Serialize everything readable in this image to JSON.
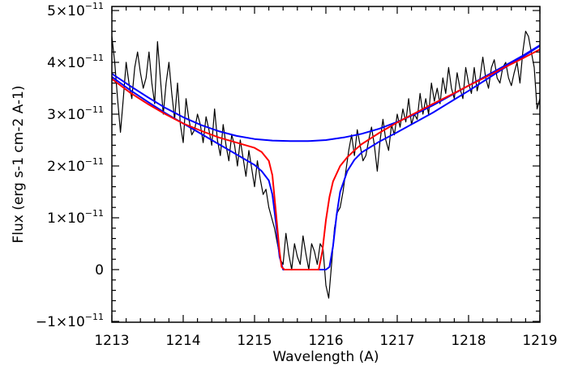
{
  "chart_data": {
    "type": "line",
    "title": "",
    "xlabel": "Wavelength (A)",
    "ylabel": "Flux (erg s-1 cm-2 A-1)",
    "xlim": [
      1213,
      1219
    ],
    "ylim": [
      -1.2e-11,
      5e-11
    ],
    "x_ticks": [
      {
        "value": 1213,
        "label": "1213"
      },
      {
        "value": 1214,
        "label": "1214"
      },
      {
        "value": 1215,
        "label": "1215"
      },
      {
        "value": 1216,
        "label": "1216"
      },
      {
        "value": 1217,
        "label": "1217"
      },
      {
        "value": 1218,
        "label": "1218"
      },
      {
        "value": 1219,
        "label": "1219"
      }
    ],
    "y_ticks": [
      {
        "value": -1e-11,
        "mantissa": "−1×10",
        "exponent": "−11"
      },
      {
        "value": 0,
        "mantissa": "0",
        "exponent": ""
      },
      {
        "value": 1e-11,
        "mantissa": "1×10",
        "exponent": "−11"
      },
      {
        "value": 2e-11,
        "mantissa": "2×10",
        "exponent": "−11"
      },
      {
        "value": 3e-11,
        "mantissa": "3×10",
        "exponent": "−11"
      },
      {
        "value": 4e-11,
        "mantissa": "4×10",
        "exponent": "−11"
      },
      {
        "value": 5e-11,
        "mantissa": "5×10",
        "exponent": "−11"
      }
    ],
    "series": [
      {
        "color": "#000000",
        "x": [
          1213.0,
          1213.04,
          1213.08,
          1213.12,
          1213.16,
          1213.2,
          1213.24,
          1213.28,
          1213.32,
          1213.36,
          1213.4,
          1213.44,
          1213.48,
          1213.52,
          1213.56,
          1213.6,
          1213.64,
          1213.68,
          1213.72,
          1213.76,
          1213.8,
          1213.84,
          1213.88,
          1213.92,
          1213.96,
          1214.0,
          1214.04,
          1214.08,
          1214.12,
          1214.16,
          1214.2,
          1214.24,
          1214.28,
          1214.32,
          1214.36,
          1214.4,
          1214.44,
          1214.48,
          1214.52,
          1214.56,
          1214.6,
          1214.64,
          1214.68,
          1214.72,
          1214.76,
          1214.8,
          1214.84,
          1214.88,
          1214.92,
          1214.96,
          1215.0,
          1215.04,
          1215.08,
          1215.12,
          1215.16,
          1215.2,
          1215.24,
          1215.28,
          1215.32,
          1215.36,
          1215.4,
          1215.44,
          1215.48,
          1215.52,
          1215.56,
          1215.6,
          1215.64,
          1215.68,
          1215.72,
          1215.76,
          1215.8,
          1215.84,
          1215.88,
          1215.92,
          1215.96,
          1216.0,
          1216.04,
          1216.08,
          1216.12,
          1216.16,
          1216.2,
          1216.24,
          1216.28,
          1216.32,
          1216.36,
          1216.4,
          1216.44,
          1216.48,
          1216.52,
          1216.56,
          1216.6,
          1216.64,
          1216.68,
          1216.72,
          1216.76,
          1216.8,
          1216.84,
          1216.88,
          1216.92,
          1216.96,
          1217.0,
          1217.04,
          1217.08,
          1217.12,
          1217.16,
          1217.2,
          1217.24,
          1217.28,
          1217.32,
          1217.36,
          1217.4,
          1217.44,
          1217.48,
          1217.52,
          1217.56,
          1217.6,
          1217.64,
          1217.68,
          1217.72,
          1217.76,
          1217.8,
          1217.84,
          1217.88,
          1217.92,
          1217.96,
          1218.0,
          1218.04,
          1218.08,
          1218.12,
          1218.16,
          1218.2,
          1218.24,
          1218.28,
          1218.32,
          1218.36,
          1218.4,
          1218.44,
          1218.48,
          1218.52,
          1218.56,
          1218.6,
          1218.64,
          1218.68,
          1218.72,
          1218.76,
          1218.8,
          1218.84,
          1218.88,
          1218.92,
          1218.96,
          1219.0
        ],
        "y": [
          4.5e-11,
          4e-11,
          3.3e-11,
          2.65e-11,
          3.3e-11,
          4e-11,
          3.6e-11,
          3.3e-11,
          3.9e-11,
          4.2e-11,
          3.8e-11,
          3.5e-11,
          3.7e-11,
          4.2e-11,
          3.6e-11,
          3.2e-11,
          4.4e-11,
          3.7e-11,
          3e-11,
          3.6e-11,
          4e-11,
          3.4e-11,
          2.9e-11,
          3.6e-11,
          2.8e-11,
          2.45e-11,
          3.3e-11,
          2.9e-11,
          2.6e-11,
          2.7e-11,
          3e-11,
          2.8e-11,
          2.45e-11,
          2.95e-11,
          2.7e-11,
          2.4e-11,
          3.1e-11,
          2.5e-11,
          2.2e-11,
          2.8e-11,
          2.4e-11,
          2.1e-11,
          2.6e-11,
          2.4e-11,
          2e-11,
          2.5e-11,
          2.15e-11,
          1.8e-11,
          2.3e-11,
          1.95e-11,
          1.6e-11,
          2.1e-11,
          1.75e-11,
          1.45e-11,
          1.55e-11,
          1.2e-11,
          1e-11,
          8e-12,
          5e-12,
          2e-12,
          1e-12,
          7e-12,
          3e-12,
          0.0,
          5e-12,
          2.5e-12,
          1e-12,
          6.5e-12,
          3e-12,
          0.0,
          5e-12,
          3.5e-12,
          1e-12,
          5e-12,
          4e-12,
          -3e-12,
          -5.5e-12,
          1e-12,
          8e-12,
          1.1e-11,
          1.2e-11,
          1.5e-11,
          1.9e-11,
          2.3e-11,
          2.6e-11,
          2.2e-11,
          2.7e-11,
          2.4e-11,
          2.1e-11,
          2.2e-11,
          2.5e-11,
          2.75e-11,
          2.4e-11,
          1.9e-11,
          2.5e-11,
          2.9e-11,
          2.5e-11,
          2.3e-11,
          2.8e-11,
          2.6e-11,
          3e-11,
          2.75e-11,
          3.1e-11,
          2.85e-11,
          3.3e-11,
          2.8e-11,
          3e-11,
          2.9e-11,
          3.4e-11,
          3e-11,
          3.3e-11,
          3e-11,
          3.6e-11,
          3.25e-11,
          3.5e-11,
          3.2e-11,
          3.7e-11,
          3.4e-11,
          3.9e-11,
          3.5e-11,
          3.3e-11,
          3.8e-11,
          3.5e-11,
          3.3e-11,
          3.9e-11,
          3.6e-11,
          3.4e-11,
          3.9e-11,
          3.45e-11,
          3.7e-11,
          4.1e-11,
          3.7e-11,
          3.5e-11,
          3.9e-11,
          4.05e-11,
          3.7e-11,
          3.6e-11,
          3.9e-11,
          4e-11,
          3.7e-11,
          3.55e-11,
          3.8e-11,
          4e-11,
          3.6e-11,
          4.2e-11,
          4.6e-11,
          4.5e-11,
          4.2e-11,
          3.9e-11,
          3.1e-11,
          3.3e-11
        ]
      },
      {
        "color": "#0000ff",
        "x": [
          1213.0,
          1213.25,
          1213.5,
          1213.75,
          1214.0,
          1214.25,
          1214.5,
          1214.75,
          1215.0,
          1215.25,
          1215.5,
          1215.75,
          1216.0,
          1216.25,
          1216.5,
          1216.75,
          1217.0,
          1217.25,
          1217.5,
          1217.75,
          1218.0,
          1218.25,
          1218.5,
          1218.75,
          1219.0
        ],
        "y": [
          3.78e-11,
          3.55e-11,
          3.33e-11,
          3.12e-11,
          2.94e-11,
          2.79e-11,
          2.67e-11,
          2.58e-11,
          2.52e-11,
          2.49e-11,
          2.48e-11,
          2.48e-11,
          2.5e-11,
          2.55e-11,
          2.62e-11,
          2.72e-11,
          2.85e-11,
          3e-11,
          3.17e-11,
          3.36e-11,
          3.55e-11,
          3.74e-11,
          3.93e-11,
          4.12e-11,
          4.33e-11
        ]
      },
      {
        "color": "#0000ff",
        "x": [
          1213.0,
          1213.25,
          1213.5,
          1213.75,
          1214.0,
          1214.25,
          1214.5,
          1214.75,
          1215.0,
          1215.1,
          1215.2,
          1215.25,
          1215.3,
          1215.35,
          1215.4,
          1215.5,
          1215.6,
          1215.7,
          1215.8,
          1215.9,
          1216.0,
          1216.05,
          1216.1,
          1216.15,
          1216.2,
          1216.3,
          1216.4,
          1216.5,
          1216.75,
          1217.0,
          1217.25,
          1217.5,
          1217.75,
          1218.0,
          1218.25,
          1218.5,
          1218.75,
          1219.0
        ],
        "y": [
          3.72e-11,
          3.47e-11,
          3.24e-11,
          3.02e-11,
          2.82e-11,
          2.62e-11,
          2.42e-11,
          2.22e-11,
          2.02e-11,
          1.9e-11,
          1.72e-11,
          1.45e-11,
          9e-12,
          2.5e-12,
          0.0,
          0.0,
          0.0,
          0.0,
          0.0,
          0.0,
          0.0,
          5e-13,
          4.5e-12,
          1.05e-11,
          1.5e-11,
          1.9e-11,
          2.12e-11,
          2.26e-11,
          2.47e-11,
          2.65e-11,
          2.84e-11,
          3.03e-11,
          3.24e-11,
          3.45e-11,
          3.67e-11,
          3.89e-11,
          4.1e-11,
          4.32e-11
        ]
      },
      {
        "color": "#ff0000",
        "x": [
          1213.0,
          1213.25,
          1213.5,
          1213.75,
          1214.0,
          1214.25,
          1214.5,
          1214.75,
          1215.0,
          1215.1,
          1215.2,
          1215.25,
          1215.3,
          1215.35,
          1215.38,
          1215.42,
          1215.5,
          1215.6,
          1215.7,
          1215.8,
          1215.9,
          1215.95,
          1216.0,
          1216.05,
          1216.1,
          1216.2,
          1216.3,
          1216.4,
          1216.5,
          1216.75,
          1217.0,
          1217.25,
          1217.5,
          1217.75,
          1218.0,
          1218.25,
          1218.5,
          1218.75,
          1219.0
        ],
        "y": [
          3.68e-11,
          3.42e-11,
          3.2e-11,
          3e-11,
          2.82e-11,
          2.68e-11,
          2.55e-11,
          2.45e-11,
          2.35e-11,
          2.27e-11,
          2.1e-11,
          1.82e-11,
          1.1e-11,
          3.5e-12,
          5e-13,
          0.0,
          0.0,
          0.0,
          0.0,
          0.0,
          0.0,
          3.5e-12,
          9.5e-12,
          1.4e-11,
          1.7e-11,
          2e-11,
          2.17e-11,
          2.3e-11,
          2.42e-11,
          2.64e-11,
          2.84e-11,
          3.02e-11,
          3.2e-11,
          3.37e-11,
          3.55e-11,
          3.72e-11,
          3.9e-11,
          4.07e-11,
          4.25e-11
        ]
      }
    ],
    "grid": false,
    "legend": "none"
  }
}
